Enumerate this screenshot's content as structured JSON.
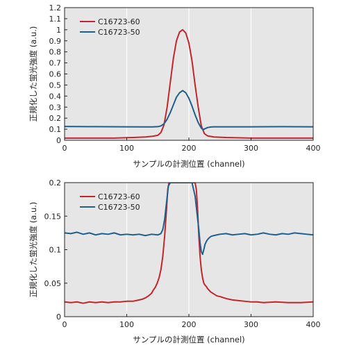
{
  "chart_data": [
    {
      "type": "line",
      "title": "",
      "xlabel": "サンプルの計測位置 (channel)",
      "ylabel": "正規化した蛍光強度 (a.u.)",
      "xlim": [
        0,
        400
      ],
      "ylim": [
        0,
        1.2
      ],
      "xticks": [
        0,
        100,
        200,
        300,
        400
      ],
      "yticks": [
        0,
        0.1,
        0.2,
        0.3,
        0.4,
        0.5,
        0.6,
        0.7,
        0.8,
        0.9,
        1,
        1.1,
        1.2
      ],
      "grid": "vertical",
      "legend_position": "top-left",
      "series": [
        {
          "name": "C16723-60",
          "color": "#c0262c",
          "x": [
            0,
            20,
            50,
            80,
            110,
            130,
            140,
            150,
            155,
            160,
            165,
            170,
            175,
            180,
            185,
            190,
            195,
            200,
            205,
            210,
            215,
            220,
            225,
            230,
            240,
            260,
            300,
            350,
            400
          ],
          "y": [
            0.02,
            0.02,
            0.02,
            0.02,
            0.025,
            0.03,
            0.035,
            0.045,
            0.07,
            0.14,
            0.3,
            0.52,
            0.74,
            0.9,
            0.98,
            1.0,
            0.97,
            0.88,
            0.72,
            0.5,
            0.3,
            0.13,
            0.06,
            0.04,
            0.03,
            0.025,
            0.02,
            0.02,
            0.02
          ]
        },
        {
          "name": "C16723-50",
          "color": "#1f5f8b",
          "x": [
            0,
            50,
            100,
            140,
            150,
            155,
            160,
            165,
            170,
            175,
            180,
            185,
            190,
            195,
            200,
            205,
            210,
            215,
            220,
            223,
            226,
            230,
            235,
            240,
            260,
            300,
            350,
            400
          ],
          "y": [
            0.125,
            0.123,
            0.122,
            0.121,
            0.123,
            0.13,
            0.15,
            0.19,
            0.25,
            0.32,
            0.39,
            0.43,
            0.45,
            0.43,
            0.38,
            0.31,
            0.23,
            0.16,
            0.11,
            0.095,
            0.105,
            0.115,
            0.12,
            0.122,
            0.122,
            0.122,
            0.123,
            0.122
          ]
        }
      ]
    },
    {
      "type": "line",
      "title": "",
      "xlabel": "サンプルの計測位置 (channel)",
      "ylabel": "正規化した蛍光強度 (a.u.)",
      "xlim": [
        0,
        400
      ],
      "ylim": [
        0,
        0.2
      ],
      "xticks": [
        0,
        100,
        200,
        300,
        400
      ],
      "yticks": [
        0,
        0.05,
        0.1,
        0.15,
        0.2
      ],
      "grid": "vertical",
      "legend_position": "top-left",
      "series": [
        {
          "name": "C16723-60",
          "color": "#c0262c",
          "x": [
            0,
            10,
            20,
            30,
            40,
            50,
            60,
            70,
            80,
            90,
            100,
            110,
            120,
            125,
            130,
            135,
            140,
            143,
            146,
            149,
            152,
            155,
            158,
            161,
            164,
            166,
            168,
            170,
            200,
            210,
            212,
            214,
            216,
            218,
            220,
            222,
            224,
            226,
            228,
            230,
            235,
            240,
            245,
            250,
            260,
            270,
            280,
            290,
            300,
            310,
            320,
            340,
            360,
            380,
            400
          ],
          "y": [
            0.022,
            0.021,
            0.022,
            0.02,
            0.022,
            0.021,
            0.022,
            0.021,
            0.022,
            0.022,
            0.023,
            0.023,
            0.025,
            0.026,
            0.028,
            0.031,
            0.035,
            0.04,
            0.044,
            0.05,
            0.058,
            0.07,
            0.09,
            0.12,
            0.16,
            0.19,
            0.2,
            0.2,
            0.2,
            0.2,
            0.19,
            0.16,
            0.12,
            0.09,
            0.07,
            0.058,
            0.05,
            0.047,
            0.045,
            0.042,
            0.037,
            0.034,
            0.031,
            0.03,
            0.027,
            0.025,
            0.024,
            0.023,
            0.022,
            0.022,
            0.021,
            0.022,
            0.021,
            0.021,
            0.022
          ]
        },
        {
          "name": "C16723-50",
          "color": "#1f5f8b",
          "x": [
            0,
            10,
            20,
            30,
            40,
            50,
            60,
            70,
            80,
            90,
            100,
            110,
            120,
            130,
            140,
            150,
            155,
            158,
            161,
            164,
            167,
            170,
            205,
            210,
            213,
            216,
            218,
            220,
            222,
            224,
            226,
            228,
            230,
            233,
            236,
            240,
            245,
            250,
            260,
            270,
            280,
            290,
            300,
            310,
            320,
            330,
            340,
            350,
            360,
            370,
            380,
            390,
            400
          ],
          "y": [
            0.125,
            0.124,
            0.126,
            0.123,
            0.125,
            0.122,
            0.124,
            0.123,
            0.125,
            0.122,
            0.123,
            0.122,
            0.123,
            0.121,
            0.123,
            0.122,
            0.124,
            0.13,
            0.145,
            0.17,
            0.195,
            0.2,
            0.2,
            0.18,
            0.155,
            0.13,
            0.11,
            0.097,
            0.093,
            0.1,
            0.108,
            0.112,
            0.115,
            0.118,
            0.12,
            0.121,
            0.122,
            0.123,
            0.124,
            0.122,
            0.123,
            0.124,
            0.122,
            0.123,
            0.125,
            0.123,
            0.122,
            0.124,
            0.123,
            0.125,
            0.124,
            0.123,
            0.122
          ]
        }
      ]
    }
  ]
}
